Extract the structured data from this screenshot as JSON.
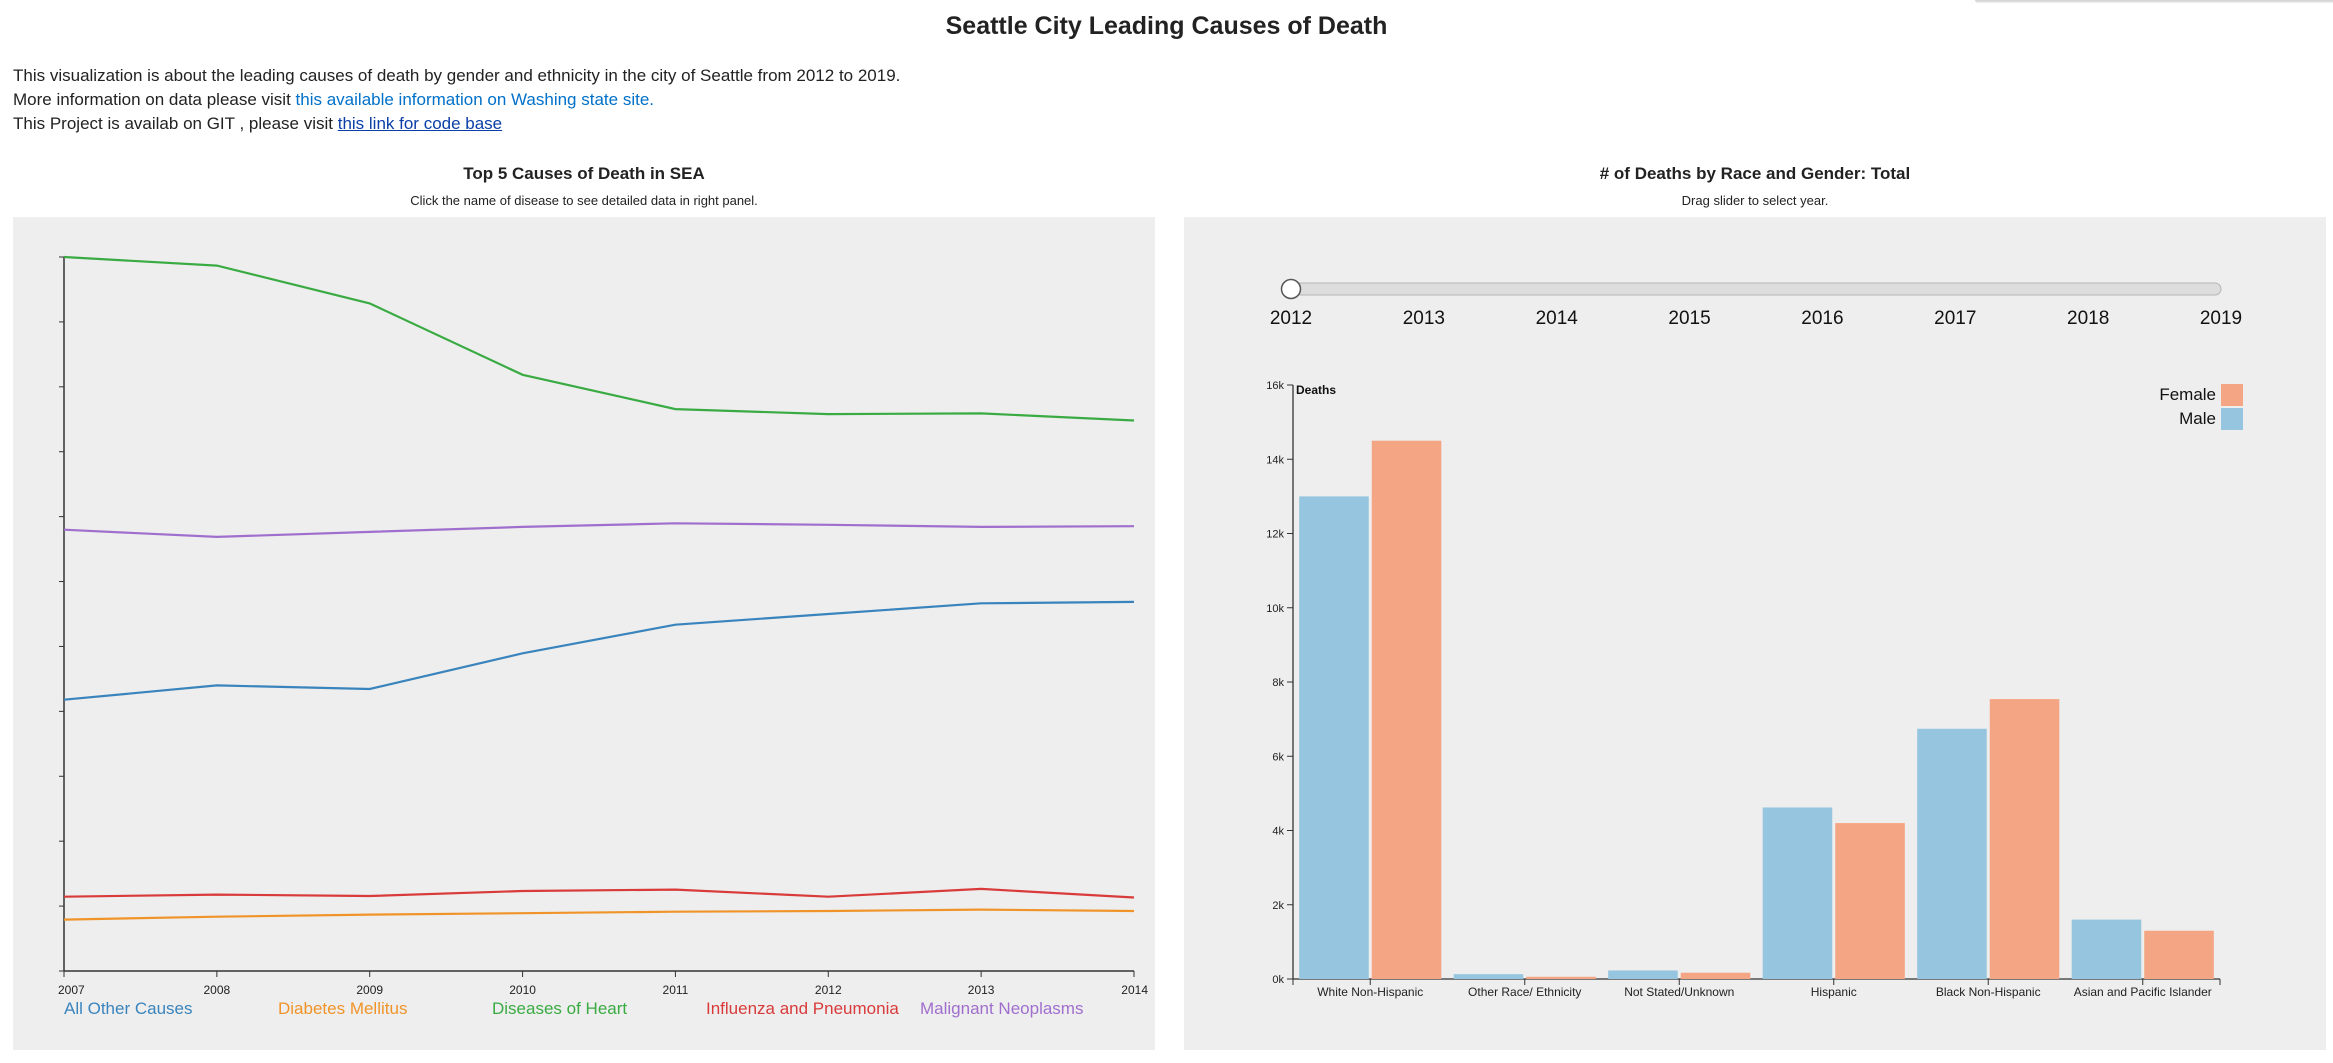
{
  "page": {
    "title": "Seattle City Leading Causes of Death",
    "intro": {
      "line1": "This visualization is about the leading causes of death by gender and ethnicity in the city of Seattle from 2012 to 2019.",
      "line2_prefix": "More information on data please visit ",
      "line2_link": "this available information on Washing state site.",
      "line3_prefix": "This Project is availab on GIT , please visit ",
      "line3_link": "this link for code base"
    }
  },
  "left_panel": {
    "title": "Top 5 Causes of Death in SEA",
    "subtitle": "Click the name of disease to see detailed data in right panel."
  },
  "right_panel": {
    "title": "# of Deaths by Race and Gender: Total",
    "subtitle": "Drag slider to select year.",
    "slider": {
      "years": [
        "2012",
        "2013",
        "2014",
        "2015",
        "2016",
        "2017",
        "2018",
        "2019"
      ],
      "selected_index": 0
    }
  },
  "chart_data": [
    {
      "type": "line",
      "x": [
        2007,
        2008,
        2009,
        2010,
        2011,
        2012,
        2013,
        2014
      ],
      "xticks": [
        "2007",
        "2008",
        "2009",
        "2010",
        "2011",
        "2012",
        "2013",
        "2014"
      ],
      "ylim": [
        0,
        1
      ],
      "y_tick_labels_shown": false,
      "legend_placement": "bottom",
      "series": [
        {
          "name": "All Other Causes",
          "color": "#3a84bd",
          "values": [
            0.38,
            0.4,
            0.395,
            0.445,
            0.485,
            0.5,
            0.515,
            0.517
          ]
        },
        {
          "name": "Diabetes Mellitus",
          "color": "#f0942a",
          "values": [
            0.072,
            0.076,
            0.079,
            0.081,
            0.083,
            0.084,
            0.086,
            0.084
          ]
        },
        {
          "name": "Diseases of Heart",
          "color": "#3aab43",
          "values": [
            1.0,
            0.988,
            0.935,
            0.835,
            0.787,
            0.78,
            0.781,
            0.771
          ]
        },
        {
          "name": "Influenza and Pneumonia",
          "color": "#d93a3a",
          "values": [
            0.104,
            0.107,
            0.105,
            0.112,
            0.114,
            0.104,
            0.115,
            0.103
          ]
        },
        {
          "name": "Malignant Neoplasms",
          "color": "#a06fce",
          "values": [
            0.618,
            0.608,
            0.615,
            0.622,
            0.627,
            0.625,
            0.622,
            0.623
          ]
        }
      ]
    },
    {
      "type": "bar",
      "ylabel": "Deaths",
      "ylim": [
        0,
        16000
      ],
      "yticks": [
        0,
        2000,
        4000,
        6000,
        8000,
        10000,
        12000,
        14000,
        16000
      ],
      "ytick_labels": [
        "0k",
        "2k",
        "4k",
        "6k",
        "8k",
        "10k",
        "12k",
        "14k",
        "16k"
      ],
      "categories": [
        "White Non-Hispanic",
        "Other Race/ Ethnicity",
        "Not Stated/Unknown",
        "Hispanic",
        "Black Non-Hispanic",
        "Asian and Pacific Islander"
      ],
      "legend_placement": "top-right",
      "series": [
        {
          "name": "Male",
          "color": "#96c6df",
          "values": [
            13000,
            130,
            230,
            4620,
            6740,
            1600
          ]
        },
        {
          "name": "Female",
          "color": "#f4a684",
          "values": [
            14500,
            60,
            170,
            4200,
            7540,
            1300
          ]
        }
      ],
      "legend_order": [
        "Female",
        "Male"
      ]
    }
  ]
}
